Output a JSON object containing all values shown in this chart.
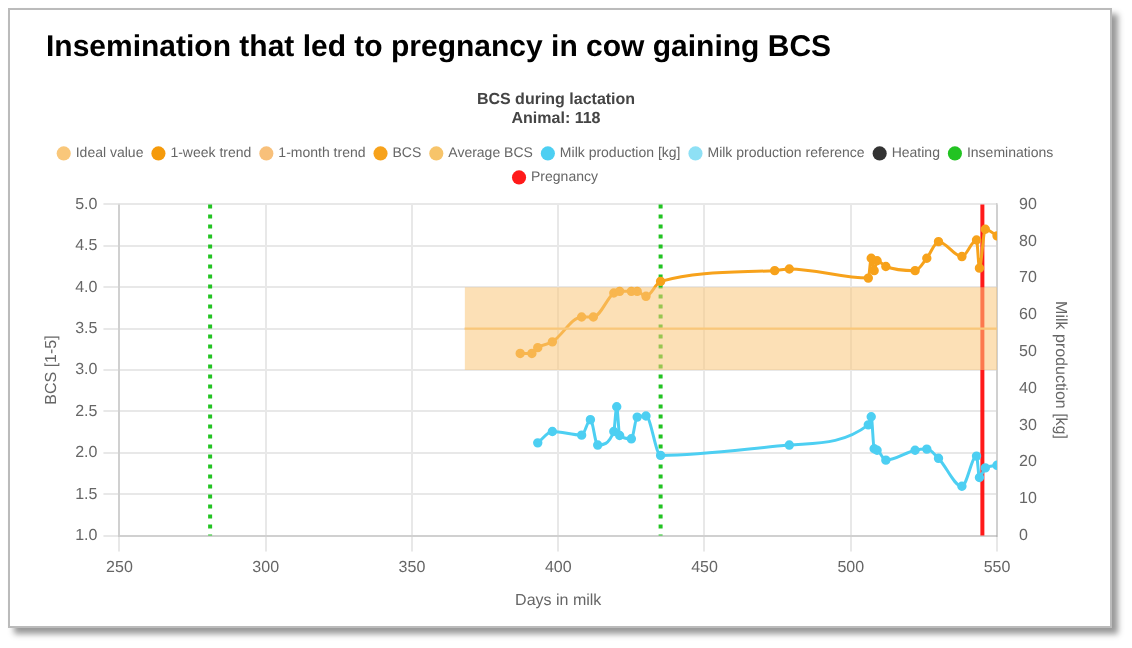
{
  "chart_data": {
    "type": "line",
    "title": "Insemination that led to pregnancy in cow gaining BCS",
    "subtitle": "BCS during lactation",
    "annotations": [
      "Animal: 118"
    ],
    "xlabel": "Days in milk",
    "ylabel": "BCS [1-5]",
    "y2label": "Milk production [kg]",
    "xlim": [
      250,
      550
    ],
    "xticks": [
      250,
      300,
      350,
      400,
      450,
      500,
      550
    ],
    "ylim": [
      1,
      5
    ],
    "yticks": [
      {
        "value": 1,
        "label": "1.0"
      },
      1.5,
      {
        "value": 2,
        "label": "2.0"
      },
      2.5,
      {
        "value": 3,
        "label": "3.0"
      },
      3.5,
      {
        "value": 4,
        "label": "4.0"
      },
      4.5,
      {
        "value": 5,
        "label": "5.0"
      }
    ],
    "y2lim": [
      0,
      90
    ],
    "y2ticks": [
      0,
      10,
      20,
      30,
      40,
      50,
      60,
      70,
      80,
      90
    ],
    "grid": true,
    "legend": "top",
    "marker": "circle",
    "line_style": "solid",
    "series": [
      {
        "name": "Ideal value",
        "color": "#f9c77a",
        "marker": "none",
        "x": [
          368,
          550
        ],
        "values": [
          3.5,
          3.5
        ],
        "lower": [
          3,
          3
        ],
        "upper": [
          4,
          4
        ]
      },
      {
        "name": "1-week trend",
        "color": "#f59a0a"
      },
      {
        "name": "1-month trend",
        "color": "#f8c07a"
      },
      {
        "name": "BCS",
        "color": "#f7a21b",
        "x": [
          387,
          391,
          393,
          398,
          408,
          412,
          419,
          421,
          425,
          427,
          430,
          435,
          474,
          479,
          506,
          507,
          508,
          509,
          512,
          522,
          526,
          530,
          538,
          543,
          544,
          546,
          550
        ],
        "values": [
          3.2,
          3.2,
          3.27,
          3.34,
          3.64,
          3.64,
          3.93,
          3.95,
          3.95,
          3.95,
          3.89,
          4.07,
          4.2,
          4.22,
          4.11,
          4.35,
          4.2,
          4.32,
          4.25,
          4.2,
          4.35,
          4.55,
          4.37,
          4.57,
          4.23,
          4.7,
          4.62
        ]
      },
      {
        "name": "Average BCS",
        "color": "#f7c46a"
      },
      {
        "name": "Milk production [kg]",
        "color": "#4dcff2",
        "axis": "y2",
        "x": [
          393,
          398,
          408,
          411,
          413.5,
          419,
          420,
          421,
          425,
          427,
          430,
          435,
          479,
          506,
          507,
          508,
          509,
          512,
          522,
          526,
          530,
          538,
          543,
          544,
          546,
          550
        ],
        "values": [
          25.2,
          28.3,
          27.3,
          31.5,
          24.6,
          28.3,
          35,
          27.2,
          26.3,
          32.2,
          32.5,
          21.8,
          24.6,
          30.1,
          32.3,
          23.6,
          23.2,
          20.5,
          23.2,
          23.5,
          21,
          13.4,
          21.6,
          15.8,
          18.4,
          19.1
        ]
      },
      {
        "name": "Milk production reference",
        "color": "#8ee0f5",
        "axis": "y2"
      },
      {
        "name": "Heating",
        "color": "#333333"
      }
    ],
    "ref_lines": [
      {
        "axis": "x",
        "value": 281,
        "label": "Inseminations",
        "color": "#22c322",
        "line_style": "dotted"
      },
      {
        "axis": "x",
        "value": 435,
        "color": "#22c322",
        "line_style": "dotted"
      },
      {
        "axis": "x",
        "value": 545,
        "label": "Pregnancy",
        "color": "#ff1a1a",
        "line_style": "solid"
      }
    ]
  }
}
